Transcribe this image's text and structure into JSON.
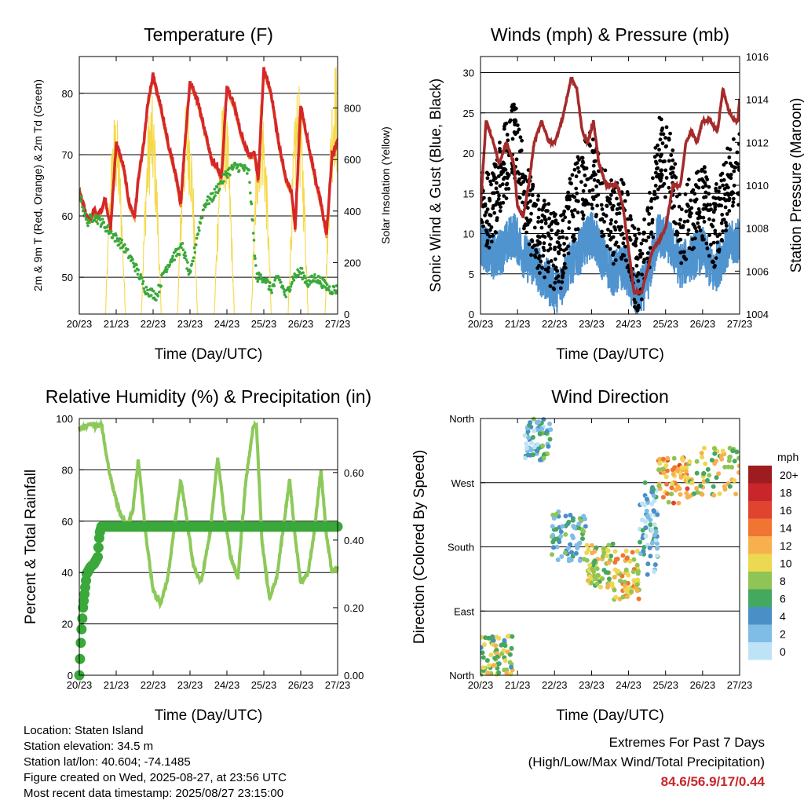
{
  "x_ticks": [
    "20/23",
    "21/23",
    "22/23",
    "23/23",
    "24/23",
    "25/23",
    "26/23",
    "27/23"
  ],
  "chart_data": [
    {
      "type": "line",
      "title": "Temperature (F)",
      "xlabel": "Time (Day/UTC)",
      "ylabel": "2m & 9m T (Red, Orange) & 2m Td (Green)",
      "ylabel_right": "Solar Insolation (Yellow)",
      "ylim": [
        44,
        86
      ],
      "ylim_right": [
        0,
        1000
      ],
      "yticks": [
        50,
        60,
        70,
        80
      ],
      "yticks_right": [
        0,
        200,
        400,
        600,
        800
      ],
      "grid": true,
      "series": [
        {
          "name": "2m T",
          "color": "#d62728",
          "x": [
            0,
            0.1,
            0.2,
            0.3,
            0.4,
            0.5,
            0.6,
            0.7,
            0.85,
            1.0,
            1.1,
            1.2,
            1.35,
            1.5,
            1.6,
            1.75,
            1.85,
            2.0,
            2.2,
            2.4,
            2.6,
            2.75,
            2.85,
            3.0,
            3.2,
            3.4,
            3.6,
            3.75,
            3.85,
            4.0,
            4.2,
            4.4,
            4.6,
            4.75,
            4.85,
            5.0,
            5.2,
            5.4,
            5.6,
            5.75,
            5.85,
            6.0,
            6.2,
            6.4,
            6.55,
            6.7,
            6.85,
            7.0
          ],
          "y": [
            64,
            62,
            60,
            59.5,
            61,
            60,
            61,
            63,
            58,
            72,
            70,
            68,
            62,
            60,
            66,
            72,
            78,
            83,
            78,
            72,
            67,
            62,
            71,
            82,
            79,
            74,
            69,
            68,
            66,
            81,
            78,
            73,
            70,
            70,
            66,
            84,
            80,
            72,
            66,
            64,
            58,
            78,
            72,
            66,
            62,
            57,
            70,
            72
          ]
        },
        {
          "name": "9m T",
          "color": "#f28e2b",
          "x": [
            0,
            0.5,
            1.0,
            1.5,
            2.0,
            2.5,
            3.0,
            3.5,
            4.0,
            4.5,
            5.0,
            5.5,
            6.0,
            6.5,
            7.0
          ],
          "y": [
            64,
            60,
            71,
            60,
            81,
            68,
            80,
            70,
            79,
            70,
            82,
            68,
            76,
            60,
            71
          ]
        },
        {
          "name": "2m Td",
          "color": "#3aa83a",
          "x": [
            0,
            0.2,
            0.4,
            0.6,
            0.9,
            1.2,
            1.5,
            1.8,
            2.1,
            2.3,
            2.5,
            2.8,
            3.0,
            3.2,
            3.4,
            3.6,
            3.8,
            4.0,
            4.2,
            4.4,
            4.6,
            4.8,
            5.0,
            5.2,
            5.4,
            5.6,
            5.8,
            6.0,
            6.2,
            6.4,
            6.6,
            6.8,
            7.0
          ],
          "y": [
            64,
            59,
            60,
            59,
            57,
            55,
            52,
            48,
            47,
            51,
            53,
            55,
            50,
            57,
            62,
            63,
            65,
            67,
            68,
            68,
            67,
            50,
            50,
            48,
            50,
            47,
            50,
            51,
            49,
            50,
            49,
            48,
            48
          ]
        },
        {
          "name": "Solar Insolation",
          "color": "#f5d94a",
          "axis": "right",
          "peaks": [
            0.98,
            1.95,
            2.93,
            3.93,
            4.93,
            5.93,
            6.93
          ],
          "values": [
            800,
            860,
            860,
            860,
            860,
            900,
            1000
          ]
        }
      ]
    },
    {
      "type": "scatter",
      "title": "Winds (mph) & Pressure (mb)",
      "xlabel": "Time (Day/UTC)",
      "ylabel": "Sonic Wind & Gust (Blue, Black)",
      "ylabel_right": "Station Pressure (Maroon)",
      "ylim": [
        0,
        32
      ],
      "ylim_right": [
        1004,
        1016
      ],
      "yticks": [
        0,
        5,
        10,
        15,
        20,
        25,
        30
      ],
      "yticks_right": [
        1004,
        1006,
        1008,
        1010,
        1012,
        1014,
        1016
      ],
      "grid": true,
      "series": [
        {
          "name": "Sonic Wind",
          "color": "#4f93cf",
          "x": [
            0,
            0.3,
            0.6,
            0.9,
            1.2,
            1.5,
            1.8,
            2.1,
            2.4,
            2.7,
            3.0,
            3.3,
            3.6,
            3.9,
            4.2,
            4.5,
            4.8,
            5.1,
            5.4,
            5.7,
            6.0,
            6.3,
            6.6,
            6.9
          ],
          "y": [
            9,
            7,
            8,
            10,
            7,
            6,
            4,
            3,
            6,
            8,
            10,
            7,
            5,
            6,
            2,
            4,
            10,
            9,
            6,
            7,
            8,
            5,
            8,
            9
          ]
        },
        {
          "name": "Gust",
          "color": "#000000",
          "x": [
            0,
            0.3,
            0.6,
            0.9,
            1.2,
            1.5,
            1.8,
            2.1,
            2.4,
            2.7,
            3.0,
            3.3,
            3.6,
            3.9,
            4.2,
            4.5,
            4.8,
            5.1,
            5.4,
            5.7,
            6.0,
            6.3,
            6.6,
            6.9
          ],
          "y": [
            14,
            13,
            18,
            22,
            15,
            10,
            9,
            7,
            12,
            16,
            18,
            14,
            11,
            12,
            5,
            8,
            20,
            18,
            11,
            12,
            14,
            10,
            15,
            18
          ]
        },
        {
          "name": "Station Pressure",
          "color": "#a52a2a",
          "axis": "right",
          "x": [
            0,
            0.15,
            0.35,
            0.5,
            0.7,
            0.9,
            1.0,
            1.15,
            1.3,
            1.45,
            1.65,
            1.85,
            2.0,
            2.2,
            2.45,
            2.6,
            2.75,
            2.9,
            3.05,
            3.2,
            3.4,
            3.55,
            3.7,
            3.85,
            4.0,
            4.15,
            4.35,
            4.5,
            4.65,
            4.85,
            5.0,
            5.2,
            5.4,
            5.55,
            5.7,
            5.85,
            6.0,
            6.2,
            6.4,
            6.55,
            6.7,
            6.85,
            6.95,
            7.0
          ],
          "y": [
            1009,
            1013,
            1012,
            1011,
            1012,
            1011,
            1009,
            1008.5,
            1010,
            1012,
            1013,
            1012,
            1012,
            1013,
            1015,
            1014.5,
            1012.5,
            1012,
            1013,
            1011,
            1010,
            1010,
            1010,
            1009,
            1007,
            1005,
            1005,
            1006,
            1007,
            1007.5,
            1008,
            1010,
            1010,
            1012,
            1012.5,
            1012,
            1013,
            1013,
            1012.5,
            1014.5,
            1013.5,
            1013,
            1013,
            1014
          ]
        }
      ]
    },
    {
      "type": "line",
      "title": "Relative Humidity (%) & Precipitation (in)",
      "xlabel": "Time (Day/UTC)",
      "ylabel": "Percent & Total Rainfall",
      "ylim": [
        0,
        100
      ],
      "ylim_right": [
        0,
        0.76
      ],
      "yticks": [
        0,
        20,
        40,
        60,
        80,
        100
      ],
      "yticks_right": [
        0.0,
        0.2,
        0.4,
        0.6
      ],
      "yticklabels_right": [
        "0.00",
        "0.20",
        "0.40",
        "0.60"
      ],
      "grid": true,
      "series": [
        {
          "name": "Relative Humidity",
          "color": "#8dc95a",
          "x": [
            0,
            0.15,
            0.3,
            0.45,
            0.6,
            0.8,
            1.0,
            1.15,
            1.3,
            1.45,
            1.6,
            1.8,
            2.0,
            2.2,
            2.4,
            2.6,
            2.75,
            2.9,
            3.1,
            3.3,
            3.55,
            3.75,
            3.9,
            4.1,
            4.3,
            4.5,
            4.7,
            4.8,
            4.95,
            5.15,
            5.35,
            5.55,
            5.7,
            5.85,
            6.0,
            6.2,
            6.35,
            6.55,
            6.7,
            6.85,
            7.0
          ],
          "y": [
            96,
            97,
            98,
            97,
            98,
            80,
            68,
            62,
            58,
            64,
            84,
            55,
            33,
            28,
            38,
            60,
            76,
            62,
            42,
            36,
            56,
            85,
            66,
            46,
            38,
            74,
            96,
            98,
            52,
            30,
            38,
            60,
            76,
            54,
            36,
            40,
            54,
            80,
            54,
            40,
            42
          ]
        },
        {
          "name": "Total Rainfall",
          "color": "#3aa83a",
          "axis": "right",
          "x": [
            0,
            0.05,
            0.1,
            0.2,
            0.3,
            0.4,
            0.5,
            0.55,
            0.6,
            0.8,
            1.0,
            2.0,
            3.0,
            4.0,
            5.0,
            6.0,
            7.0
          ],
          "y": [
            0,
            0.12,
            0.2,
            0.3,
            0.32,
            0.33,
            0.35,
            0.42,
            0.44,
            0.44,
            0.44,
            0.44,
            0.44,
            0.44,
            0.44,
            0.44,
            0.44
          ]
        }
      ]
    },
    {
      "type": "scatter",
      "title": "Wind Direction",
      "xlabel": "Time (Day/UTC)",
      "ylabel": "Direction (Colored By Speed)",
      "ylim": [
        0,
        360
      ],
      "yticks": [
        0,
        90,
        180,
        270,
        360
      ],
      "yticklabels": [
        "North",
        "East",
        "South",
        "West",
        "North"
      ],
      "grid": true,
      "colorbar": {
        "title": "mph",
        "labels": [
          "20+",
          "18",
          "16",
          "14",
          "12",
          "10",
          "8",
          "6",
          "4",
          "2",
          "0"
        ],
        "colors": [
          "#9e1b1f",
          "#c8262b",
          "#e0432f",
          "#f07532",
          "#f8b04f",
          "#ecd851",
          "#8ec554",
          "#45a85f",
          "#4a8fc6",
          "#7fbde6",
          "#bfe3f6"
        ]
      },
      "clusters": [
        {
          "x": [
            0,
            0.9
          ],
          "y": [
            0,
            55
          ],
          "speed": 8
        },
        {
          "x": [
            1.2,
            1.9
          ],
          "y": [
            300,
            360
          ],
          "speed": 4
        },
        {
          "x": [
            1.9,
            2.85
          ],
          "y": [
            160,
            230
          ],
          "speed": 5
        },
        {
          "x": [
            2.85,
            3.6
          ],
          "y": [
            120,
            185
          ],
          "speed": 9
        },
        {
          "x": [
            3.6,
            4.3
          ],
          "y": [
            105,
            175
          ],
          "speed": 11
        },
        {
          "x": [
            4.3,
            4.8
          ],
          "y": [
            140,
            270
          ],
          "speed": 3
        },
        {
          "x": [
            4.8,
            5.6
          ],
          "y": [
            240,
            305
          ],
          "speed": 12
        },
        {
          "x": [
            5.6,
            7.0
          ],
          "y": [
            250,
            320
          ],
          "speed": 9
        }
      ]
    }
  ],
  "footer": {
    "location": "Location: Staten Island",
    "elevation": "Station elevation: 34.5 m",
    "latlon": "Station lat/lon: 40.604; -74.1485",
    "created": "Figure created on Wed, 2025-08-27, at 23:56 UTC",
    "recent": "Most recent data timestamp: 2025/08/27 23:15:00"
  },
  "extremes": {
    "title": "Extremes For Past 7 Days",
    "subtitle": "(High/Low/Max Wind/Total Precipitation)",
    "values": "84.6/56.9/17/0.44"
  }
}
